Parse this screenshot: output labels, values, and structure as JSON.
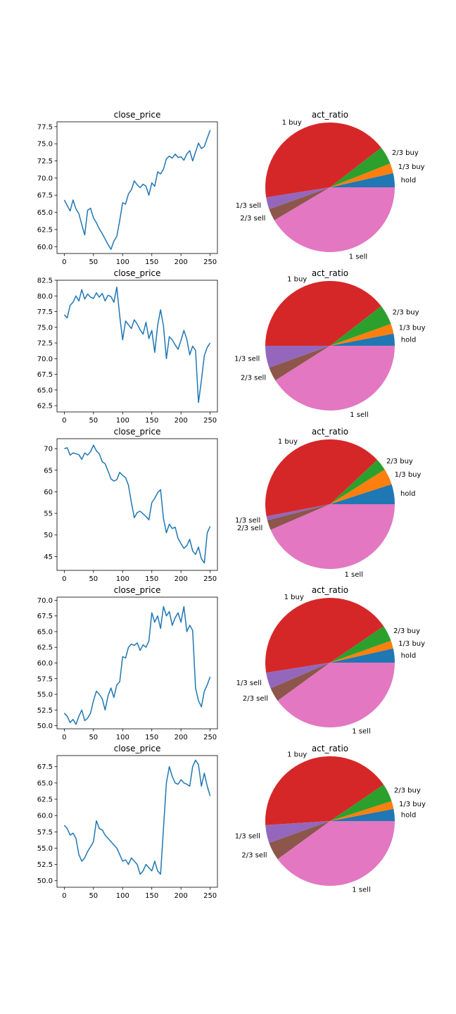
{
  "chart_data": [
    {
      "type": "line",
      "title": "close_price",
      "xlim": [
        -12.5,
        262.5
      ],
      "ylim": [
        59.0,
        78.2
      ],
      "xticks": [
        0,
        50,
        100,
        150,
        200,
        250
      ],
      "yticks": [
        60.0,
        62.5,
        65.0,
        67.5,
        70.0,
        72.5,
        75.0,
        77.5
      ],
      "ytick_labels": [
        "60.0",
        "62.5",
        "65.0",
        "67.5",
        "70.0",
        "72.5",
        "75.0",
        "77.5"
      ],
      "color": "#1f77b4",
      "x": [
        0,
        5,
        10,
        15,
        20,
        25,
        30,
        35,
        40,
        45,
        50,
        55,
        60,
        65,
        70,
        75,
        80,
        85,
        90,
        95,
        100,
        105,
        110,
        115,
        120,
        125,
        130,
        135,
        140,
        145,
        150,
        155,
        160,
        165,
        170,
        175,
        180,
        185,
        190,
        195,
        200,
        205,
        210,
        215,
        220,
        225,
        230,
        235,
        240,
        245,
        250
      ],
      "y": [
        66.8,
        66.0,
        65.2,
        66.8,
        65.5,
        64.8,
        63.2,
        61.7,
        65.3,
        65.6,
        64.2,
        63.5,
        62.6,
        61.9,
        61.1,
        60.3,
        59.6,
        60.8,
        61.5,
        63.8,
        66.4,
        66.2,
        67.7,
        68.3,
        69.6,
        69.0,
        68.6,
        69.1,
        68.8,
        67.5,
        69.3,
        68.8,
        70.9,
        70.6,
        71.3,
        72.8,
        73.2,
        72.9,
        73.5,
        73.0,
        73.1,
        72.6,
        73.5,
        74.0,
        72.5,
        73.8,
        75.1,
        74.3,
        74.6,
        75.8,
        77.0
      ]
    },
    {
      "type": "pie",
      "title": "act_ratio",
      "labels": [
        "hold",
        "1/3 buy",
        "2/3 buy",
        "1 buy",
        "1/3 sell",
        "2/3 sell",
        "1 sell"
      ],
      "values": [
        3.5,
        2.5,
        4.5,
        42.0,
        3.0,
        3.0,
        41.5
      ],
      "colors": [
        "#1f77b4",
        "#ff7f0e",
        "#2ca02c",
        "#d62728",
        "#9467bd",
        "#8c564b",
        "#e377c2"
      ]
    },
    {
      "type": "line",
      "title": "close_price",
      "xlim": [
        -12.5,
        262.5
      ],
      "ylim": [
        61.5,
        82.5
      ],
      "xticks": [
        0,
        50,
        100,
        150,
        200,
        250
      ],
      "yticks": [
        62.5,
        65.0,
        67.5,
        70.0,
        72.5,
        75.0,
        77.5,
        80.0,
        82.5
      ],
      "ytick_labels": [
        "62.5",
        "65.0",
        "67.5",
        "70.0",
        "72.5",
        "75.0",
        "77.5",
        "80.0",
        "82.5"
      ],
      "color": "#1f77b4",
      "x": [
        0,
        5,
        10,
        15,
        20,
        25,
        30,
        35,
        40,
        45,
        50,
        55,
        60,
        65,
        70,
        75,
        80,
        85,
        90,
        95,
        100,
        105,
        110,
        115,
        120,
        125,
        130,
        135,
        140,
        145,
        150,
        155,
        160,
        165,
        170,
        175,
        180,
        185,
        190,
        195,
        200,
        205,
        210,
        215,
        220,
        225,
        230,
        235,
        240,
        245,
        250
      ],
      "y": [
        77.0,
        76.5,
        78.5,
        79.0,
        80.0,
        79.2,
        81.0,
        79.5,
        80.3,
        79.8,
        79.6,
        80.5,
        79.8,
        80.4,
        79.2,
        80.1,
        79.9,
        79.0,
        81.4,
        76.8,
        73.0,
        76.0,
        75.4,
        74.8,
        76.2,
        75.5,
        74.6,
        73.9,
        75.8,
        73.2,
        74.5,
        71.0,
        75.3,
        77.8,
        75.2,
        70.0,
        73.5,
        73.0,
        72.2,
        71.5,
        72.9,
        74.5,
        73.1,
        70.6,
        72.0,
        71.3,
        63.0,
        66.5,
        70.5,
        71.8,
        72.5
      ]
    },
    {
      "type": "pie",
      "title": "act_ratio",
      "labels": [
        "hold",
        "1/3 buy",
        "2/3 buy",
        "1 buy",
        "1/3 sell",
        "2/3 sell",
        "1 sell"
      ],
      "values": [
        3.0,
        2.5,
        5.0,
        39.5,
        5.5,
        3.5,
        41.0
      ],
      "colors": [
        "#1f77b4",
        "#ff7f0e",
        "#2ca02c",
        "#d62728",
        "#9467bd",
        "#8c564b",
        "#e377c2"
      ]
    },
    {
      "type": "line",
      "title": "close_price",
      "xlim": [
        -12.5,
        262.5
      ],
      "ylim": [
        41.8,
        72.3
      ],
      "xticks": [
        0,
        50,
        100,
        150,
        200,
        250
      ],
      "yticks": [
        45,
        50,
        55,
        60,
        65,
        70
      ],
      "ytick_labels": [
        "45",
        "50",
        "55",
        "60",
        "65",
        "70"
      ],
      "color": "#1f77b4",
      "x": [
        0,
        5,
        10,
        15,
        20,
        25,
        30,
        35,
        40,
        45,
        50,
        55,
        60,
        65,
        70,
        75,
        80,
        85,
        90,
        95,
        100,
        105,
        110,
        115,
        120,
        125,
        130,
        135,
        140,
        145,
        150,
        155,
        160,
        165,
        170,
        175,
        180,
        185,
        190,
        195,
        200,
        205,
        210,
        215,
        220,
        225,
        230,
        235,
        240,
        245,
        250
      ],
      "y": [
        70.0,
        70.2,
        68.5,
        69.0,
        68.8,
        68.6,
        67.5,
        69.0,
        68.5,
        69.3,
        70.8,
        69.5,
        68.8,
        67.0,
        66.5,
        64.8,
        63.0,
        62.5,
        62.8,
        64.5,
        63.8,
        63.3,
        61.5,
        57.5,
        54.0,
        55.2,
        55.5,
        54.9,
        54.3,
        53.5,
        57.5,
        58.5,
        59.8,
        60.5,
        53.8,
        50.5,
        52.5,
        51.5,
        51.8,
        49.2,
        48.0,
        46.9,
        47.5,
        49.0,
        46.3,
        45.5,
        47.2,
        44.5,
        43.5,
        50.5,
        52.0
      ]
    },
    {
      "type": "pie",
      "title": "act_ratio",
      "labels": [
        "hold",
        "1/3 buy",
        "2/3 buy",
        "1 buy",
        "1/3 sell",
        "2/3 sell",
        "1 sell"
      ],
      "values": [
        5.0,
        4.0,
        3.0,
        41.0,
        1.0,
        2.5,
        43.5
      ],
      "colors": [
        "#1f77b4",
        "#ff7f0e",
        "#2ca02c",
        "#d62728",
        "#9467bd",
        "#8c564b",
        "#e377c2"
      ]
    },
    {
      "type": "line",
      "title": "close_price",
      "xlim": [
        -12.5,
        262.5
      ],
      "ylim": [
        49.5,
        70.5
      ],
      "xticks": [
        0,
        50,
        100,
        150,
        200,
        250
      ],
      "yticks": [
        50.0,
        52.5,
        55.0,
        57.5,
        60.0,
        62.5,
        65.0,
        67.5,
        70.0
      ],
      "ytick_labels": [
        "50.0",
        "52.5",
        "55.0",
        "57.5",
        "60.0",
        "62.5",
        "65.0",
        "67.5",
        "70.0"
      ],
      "color": "#1f77b4",
      "x": [
        0,
        5,
        10,
        15,
        20,
        25,
        30,
        35,
        40,
        45,
        50,
        55,
        60,
        65,
        70,
        75,
        80,
        85,
        90,
        95,
        100,
        105,
        110,
        115,
        120,
        125,
        130,
        135,
        140,
        145,
        150,
        155,
        160,
        165,
        170,
        175,
        180,
        185,
        190,
        195,
        200,
        205,
        210,
        215,
        220,
        225,
        230,
        235,
        240,
        245,
        250
      ],
      "y": [
        52.0,
        51.5,
        50.5,
        51.0,
        50.2,
        51.5,
        52.5,
        50.8,
        51.2,
        52.0,
        54.0,
        55.5,
        55.0,
        54.3,
        52.5,
        54.8,
        56.0,
        54.5,
        56.5,
        57.0,
        61.0,
        60.8,
        62.5,
        63.0,
        62.8,
        63.2,
        62.0,
        62.9,
        62.5,
        63.5,
        68.0,
        66.5,
        67.5,
        65.5,
        69.0,
        67.5,
        68.2,
        66.0,
        67.2,
        68.0,
        66.5,
        69.0,
        65.0,
        66.0,
        65.2,
        56.0,
        54.0,
        53.0,
        55.5,
        56.5,
        57.8
      ]
    },
    {
      "type": "pie",
      "title": "act_ratio",
      "labels": [
        "hold",
        "1/3 buy",
        "2/3 buy",
        "1 buy",
        "1/3 sell",
        "2/3 sell",
        "1 sell"
      ],
      "values": [
        3.5,
        2.0,
        4.0,
        43.0,
        4.0,
        3.5,
        40.0
      ],
      "colors": [
        "#1f77b4",
        "#ff7f0e",
        "#2ca02c",
        "#d62728",
        "#9467bd",
        "#8c564b",
        "#e377c2"
      ]
    },
    {
      "type": "line",
      "title": "close_price",
      "xlim": [
        -12.5,
        262.5
      ],
      "ylim": [
        49.0,
        69.2
      ],
      "xticks": [
        0,
        50,
        100,
        150,
        200,
        250
      ],
      "yticks": [
        50.0,
        52.5,
        55.0,
        57.5,
        60.0,
        62.5,
        65.0,
        67.5
      ],
      "ytick_labels": [
        "50.0",
        "52.5",
        "55.0",
        "57.5",
        "60.0",
        "62.5",
        "65.0",
        "67.5"
      ],
      "color": "#1f77b4",
      "x": [
        0,
        5,
        10,
        15,
        20,
        25,
        30,
        35,
        40,
        45,
        50,
        55,
        60,
        65,
        70,
        75,
        80,
        85,
        90,
        95,
        100,
        105,
        110,
        115,
        120,
        125,
        130,
        135,
        140,
        145,
        150,
        155,
        160,
        165,
        170,
        175,
        180,
        185,
        190,
        195,
        200,
        205,
        210,
        215,
        220,
        225,
        230,
        235,
        240,
        245,
        250
      ],
      "y": [
        58.5,
        58.0,
        57.0,
        57.3,
        56.5,
        54.0,
        53.0,
        53.5,
        54.5,
        55.2,
        56.0,
        59.2,
        58.0,
        57.8,
        57.0,
        56.5,
        56.0,
        55.5,
        55.0,
        54.0,
        53.0,
        53.2,
        52.5,
        53.5,
        53.0,
        52.5,
        51.0,
        51.5,
        52.5,
        52.0,
        51.5,
        53.0,
        51.5,
        51.0,
        58.0,
        65.0,
        67.5,
        66.0,
        65.0,
        64.8,
        65.5,
        65.0,
        64.8,
        64.5,
        67.5,
        68.5,
        67.8,
        64.5,
        66.5,
        64.5,
        63.0
      ]
    },
    {
      "type": "pie",
      "title": "act_ratio",
      "labels": [
        "hold",
        "1/3 buy",
        "2/3 buy",
        "1 buy",
        "1/3 sell",
        "2/3 sell",
        "1 sell"
      ],
      "values": [
        3.0,
        2.0,
        4.5,
        41.5,
        4.5,
        4.5,
        40.0
      ],
      "colors": [
        "#1f77b4",
        "#ff7f0e",
        "#2ca02c",
        "#d62728",
        "#9467bd",
        "#8c564b",
        "#e377c2"
      ]
    }
  ]
}
